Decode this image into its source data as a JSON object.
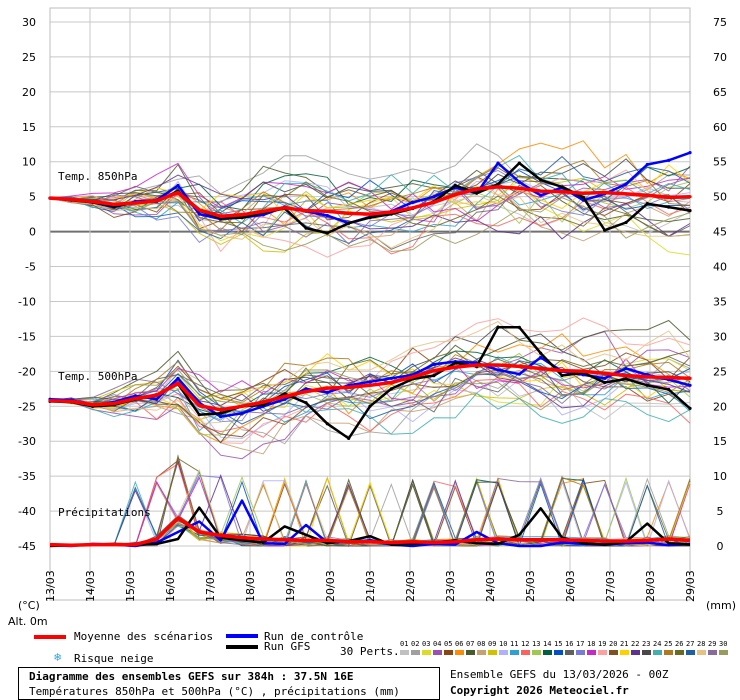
{
  "chart_data": {
    "type": "line",
    "title": "Diagramme des ensembles GEFS sur 384h : 37.5N 16E",
    "subtitle": "Températures 850hPa et 500hPa (°C) , précipitations (mm)",
    "left_axis": {
      "unit": "(°C)",
      "ticks": [
        30,
        25,
        20,
        15,
        10,
        5,
        0,
        -5,
        -10,
        -15,
        -20,
        -25,
        -30,
        -35,
        -40,
        -45
      ],
      "range": [
        -45,
        30
      ]
    },
    "right_axis": {
      "unit": "(mm)",
      "ticks": [
        75,
        70,
        65,
        60,
        55,
        50,
        45,
        40,
        35,
        30,
        25,
        20,
        15,
        10,
        5,
        0
      ]
    },
    "x_labels": [
      "13/03",
      "14/03",
      "15/03",
      "16/03",
      "17/03",
      "18/03",
      "19/03",
      "20/03",
      "21/03",
      "22/03",
      "23/03",
      "24/03",
      "25/03",
      "26/03",
      "27/03",
      "28/03",
      "29/03"
    ],
    "alt_label": "Alt. 0m",
    "panel_labels": {
      "t850": "Temp. 850hPa",
      "t500": "Temp. 500hPa",
      "precip": "Précipitations"
    },
    "series": [
      {
        "name": "Moyenne des scénarios",
        "color": "#ff0000",
        "role": "mean",
        "t850": [
          4.8,
          4.6,
          4.3,
          3.9,
          4.1,
          4.4,
          5.6,
          3.1,
          2.2,
          2.4,
          2.9,
          3.4,
          3.0,
          2.9,
          2.6,
          2.5,
          2.8,
          3.4,
          4.2,
          5.3,
          6.1,
          6.4,
          6.2,
          5.8,
          5.7,
          5.5,
          5.6,
          5.4,
          5.2,
          4.9,
          5.0
        ],
        "t500": [
          -24.2,
          -24.3,
          -24.8,
          -24.6,
          -23.9,
          -23.4,
          -21.7,
          -24.9,
          -25.5,
          -25.0,
          -24.4,
          -23.6,
          -22.9,
          -22.4,
          -22.3,
          -22.0,
          -21.6,
          -20.8,
          -19.9,
          -19.4,
          -19.1,
          -19.1,
          -19.3,
          -19.6,
          -19.9,
          -20.0,
          -20.3,
          -20.6,
          -20.8,
          -20.9,
          -21.0
        ],
        "precip": [
          0.2,
          0.1,
          0.2,
          0.2,
          0.2,
          1.0,
          4.0,
          2.0,
          1.5,
          1.2,
          1.0,
          0.9,
          0.8,
          0.8,
          0.6,
          0.6,
          0.5,
          0.6,
          0.5,
          0.6,
          0.9,
          1.0,
          0.9,
          0.9,
          0.9,
          0.8,
          0.7,
          0.7,
          0.8,
          1.0,
          0.8
        ]
      },
      {
        "name": "Run de contrôle",
        "color": "#0000ff",
        "role": "control",
        "t850": [
          4.8,
          4.6,
          4.2,
          3.5,
          4.3,
          4.5,
          6.6,
          2.5,
          1.8,
          2.0,
          2.4,
          3.5,
          2.9,
          2.3,
          1.2,
          2.1,
          2.9,
          4.2,
          5.0,
          6.3,
          5.5,
          9.8,
          7.1,
          5.2,
          6.3,
          4.5,
          5.4,
          6.8,
          9.6,
          10.2,
          11.3
        ],
        "t500": [
          -24.0,
          -24.1,
          -25.0,
          -24.4,
          -23.5,
          -24.0,
          -21.0,
          -24.5,
          -26.5,
          -26.0,
          -25.0,
          -24.0,
          -22.5,
          -23.0,
          -22.0,
          -21.5,
          -21.0,
          -20.5,
          -19.0,
          -18.6,
          -18.8,
          -19.8,
          -20.4,
          -18.0,
          -20.0,
          -20.5,
          -21.0,
          -19.6,
          -20.5,
          -21.2,
          -22.0
        ],
        "precip": [
          0.1,
          0.0,
          0.3,
          0.2,
          0.0,
          0.5,
          2.0,
          3.5,
          0.8,
          6.5,
          0.4,
          0.3,
          3.0,
          0.5,
          0.6,
          0.8,
          0.2,
          0.0,
          0.3,
          0.2,
          2.0,
          0.4,
          0.0,
          0.0,
          0.5,
          0.3,
          0.2,
          0.4,
          0.5,
          0.1,
          0.3
        ]
      },
      {
        "name": "Run GFS",
        "color": "#000000",
        "role": "gfs",
        "t850": [
          4.8,
          4.5,
          4.2,
          3.6,
          4.1,
          4.3,
          5.8,
          3.0,
          1.9,
          2.0,
          2.7,
          3.3,
          0.5,
          -0.2,
          1.2,
          2.0,
          2.5,
          3.3,
          4.3,
          6.6,
          5.5,
          6.8,
          9.8,
          7.4,
          6.4,
          4.9,
          0.2,
          1.3,
          4.0,
          3.5,
          3.0
        ],
        "t500": [
          -24.3,
          -24.4,
          -25.0,
          -24.8,
          -24.0,
          -23.4,
          -21.8,
          -26.2,
          -26.0,
          -25.0,
          -24.8,
          -23.2,
          -24.5,
          -27.5,
          -29.6,
          -25.0,
          -22.5,
          -21.1,
          -20.6,
          -18.8,
          -19.3,
          -13.7,
          -13.7,
          -17.4,
          -20.6,
          -20.2,
          -21.6,
          -21.1,
          -22.0,
          -22.6,
          -25.3
        ],
        "precip": [
          0.0,
          0.1,
          0.2,
          0.3,
          0.2,
          0.3,
          1.0,
          5.5,
          1.2,
          0.8,
          0.5,
          2.8,
          1.6,
          0.4,
          0.7,
          1.4,
          0.2,
          0.3,
          0.5,
          0.8,
          0.4,
          0.3,
          1.6,
          5.4,
          1.2,
          0.4,
          0.2,
          0.6,
          3.2,
          0.4,
          0.2
        ]
      }
    ]
  },
  "legend": {
    "mean": "Moyenne des scénarios",
    "control": "Run de contrôle",
    "gfs": "Run GFS",
    "snow": "Risque neige",
    "perts_label": "30 Perts.",
    "perts": [
      "01",
      "02",
      "03",
      "04",
      "05",
      "06",
      "07",
      "08",
      "09",
      "10",
      "11",
      "12",
      "13",
      "14",
      "15",
      "16",
      "17",
      "18",
      "19",
      "20",
      "21",
      "22",
      "23",
      "24",
      "25",
      "26",
      "27",
      "28",
      "29",
      "30"
    ],
    "pert_colors": [
      "#c0c0c0",
      "#a0a0a0",
      "#dcdc28",
      "#9c4fb0",
      "#8b4513",
      "#ff8c00",
      "#4b5a2a",
      "#c8a070",
      "#d0c000",
      "#b0b0ff",
      "#30a0d0",
      "#ff6060",
      "#a0c850",
      "#006040",
      "#0050c8",
      "#606060",
      "#7a7ad8",
      "#c828c8",
      "#ffa0a0",
      "#805020",
      "#ffd000",
      "#603090",
      "#484848",
      "#40b0b0",
      "#b07820",
      "#6a6a20",
      "#2060a0",
      "#e8c080",
      "#8a6a9a",
      "#9a9a5a"
    ]
  },
  "info": {
    "line1": "Diagramme des ensembles GEFS sur 384h : 37.5N 16E",
    "line2": "Températures 850hPa et 500hPa (°C) , précipitations (mm)",
    "run": "Ensemble GEFS du 13/03/2026 - 00Z",
    "copyright": "Copyright 2026 Meteociel.fr"
  }
}
